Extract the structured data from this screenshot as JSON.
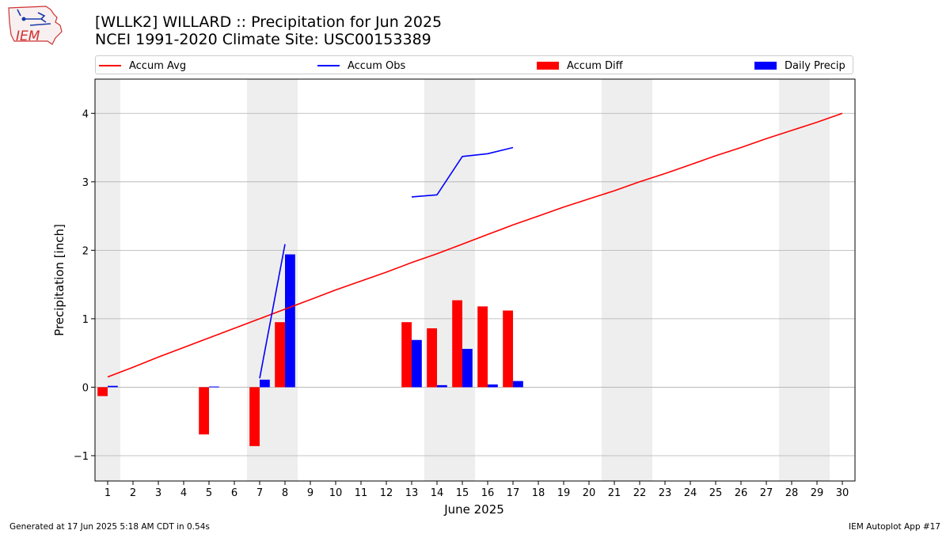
{
  "title_line1": "[WLLK2] WILLARD :: Precipitation for Jun 2025",
  "title_line2": "NCEI 1991-2020 Climate Site: USC00153389",
  "logo_text": "IEM",
  "footer_left": "Generated at 17 Jun 2025 5:18 AM CDT in 0.54s",
  "footer_right": "IEM Autoplot App #17",
  "colors": {
    "accum_avg": "#ff0000",
    "accum_obs": "#0000ff",
    "accum_diff": "#ff0000",
    "daily_precip": "#0000ff",
    "weekend_shade": "#eeeeee",
    "grid": "#b0b0b0"
  },
  "chart_data": {
    "type": "bar",
    "xlabel": "June 2025",
    "ylabel": "Precipitation [inch]",
    "xlim": [
      0.5,
      30.5
    ],
    "ylim": [
      -1.37,
      4.5
    ],
    "yticks": [
      -1,
      0,
      1,
      2,
      3,
      4
    ],
    "ytick_labels": [
      "−1",
      "0",
      "1",
      "2",
      "3",
      "4"
    ],
    "x": [
      1,
      2,
      3,
      4,
      5,
      6,
      7,
      8,
      9,
      10,
      11,
      12,
      13,
      14,
      15,
      16,
      17,
      18,
      19,
      20,
      21,
      22,
      23,
      24,
      25,
      26,
      27,
      28,
      29,
      30
    ],
    "x_labels": [
      "1",
      "2",
      "3",
      "4",
      "5",
      "6",
      "7",
      "8",
      "9",
      "10",
      "11",
      "12",
      "13",
      "14",
      "15",
      "16",
      "17",
      "18",
      "19",
      "20",
      "21",
      "22",
      "23",
      "24",
      "25",
      "26",
      "27",
      "28",
      "29",
      "30"
    ],
    "weekend_spans": [
      [
        0.5,
        1.5
      ],
      [
        6.5,
        8.5
      ],
      [
        13.5,
        15.5
      ],
      [
        20.5,
        22.5
      ],
      [
        27.5,
        29.5
      ]
    ],
    "grid": "horizontal",
    "legend_placement": "top",
    "legend": [
      "Accum Avg",
      "Accum Obs",
      "Accum Diff",
      "Daily Precip"
    ],
    "series": [
      {
        "name": "Accum Avg",
        "kind": "line",
        "values": [
          0.15,
          0.29,
          0.44,
          0.58,
          0.72,
          0.86,
          1.0,
          1.14,
          1.28,
          1.42,
          1.55,
          1.68,
          1.82,
          1.95,
          2.09,
          2.23,
          2.37,
          2.5,
          2.63,
          2.75,
          2.87,
          3.0,
          3.12,
          3.25,
          3.38,
          3.5,
          3.63,
          3.75,
          3.87,
          4.0
        ]
      },
      {
        "name": "Accum Obs",
        "kind": "line",
        "values": [
          null,
          null,
          null,
          null,
          null,
          null,
          0.13,
          2.09,
          null,
          null,
          null,
          null,
          2.78,
          2.81,
          3.37,
          3.41,
          3.5,
          null,
          null,
          null,
          null,
          null,
          null,
          null,
          null,
          null,
          null,
          null,
          null,
          null
        ]
      },
      {
        "name": "Accum Diff",
        "kind": "bar",
        "values": [
          -0.13,
          null,
          null,
          null,
          -0.69,
          null,
          -0.86,
          0.95,
          null,
          null,
          null,
          null,
          0.95,
          0.86,
          1.27,
          1.18,
          1.12,
          null,
          null,
          null,
          null,
          null,
          null,
          null,
          null,
          null,
          null,
          null,
          null,
          null
        ]
      },
      {
        "name": "Daily Precip",
        "kind": "bar",
        "values": [
          0.02,
          null,
          null,
          null,
          0.01,
          null,
          0.11,
          1.94,
          null,
          null,
          null,
          null,
          0.69,
          0.03,
          0.56,
          0.04,
          0.09,
          null,
          null,
          null,
          null,
          null,
          null,
          null,
          null,
          null,
          null,
          null,
          null,
          null
        ]
      }
    ]
  }
}
